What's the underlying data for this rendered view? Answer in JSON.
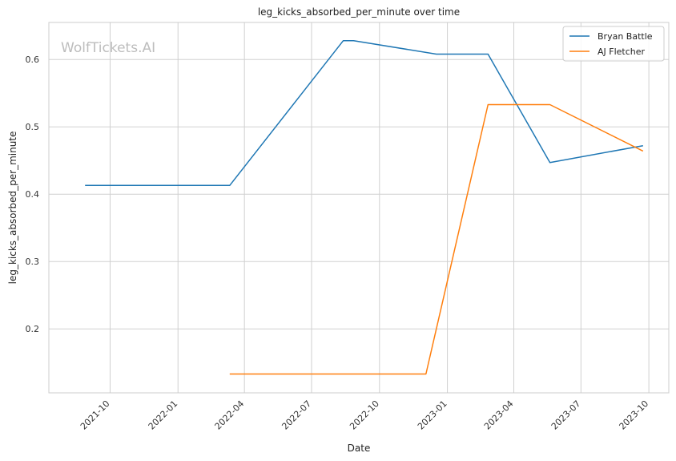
{
  "chart_data": {
    "type": "line",
    "title": "leg_kicks_absorbed_per_minute over time",
    "xlabel": "Date",
    "ylabel": "leg_kicks_absorbed_per_minute",
    "watermark": "WolfTickets.AI",
    "x_ticks": [
      "2021-10",
      "2022-01",
      "2022-04",
      "2022-07",
      "2022-10",
      "2023-01",
      "2023-04",
      "2023-07",
      "2023-10"
    ],
    "y_ticks": [
      "0.2",
      "0.3",
      "0.4",
      "0.5",
      "0.6"
    ],
    "xlim": [
      "2021-07-10",
      "2023-10-28"
    ],
    "ylim": [
      0.105,
      0.655
    ],
    "grid": true,
    "legend_position": "top-right",
    "series": [
      {
        "name": "Bryan Battle",
        "color": "#1f77b4",
        "points": [
          [
            "2021-08-28",
            0.413
          ],
          [
            "2022-03-12",
            0.413
          ],
          [
            "2022-08-13",
            0.628
          ],
          [
            "2022-08-27",
            0.628
          ],
          [
            "2022-12-17",
            0.608
          ],
          [
            "2023-02-25",
            0.608
          ],
          [
            "2023-05-20",
            0.447
          ],
          [
            "2023-09-23",
            0.472
          ]
        ]
      },
      {
        "name": "AJ Fletcher",
        "color": "#ff7f0e",
        "points": [
          [
            "2022-03-12",
            0.133
          ],
          [
            "2022-12-03",
            0.133
          ],
          [
            "2023-02-25",
            0.533
          ],
          [
            "2023-05-20",
            0.533
          ],
          [
            "2023-09-23",
            0.464
          ]
        ]
      }
    ]
  }
}
